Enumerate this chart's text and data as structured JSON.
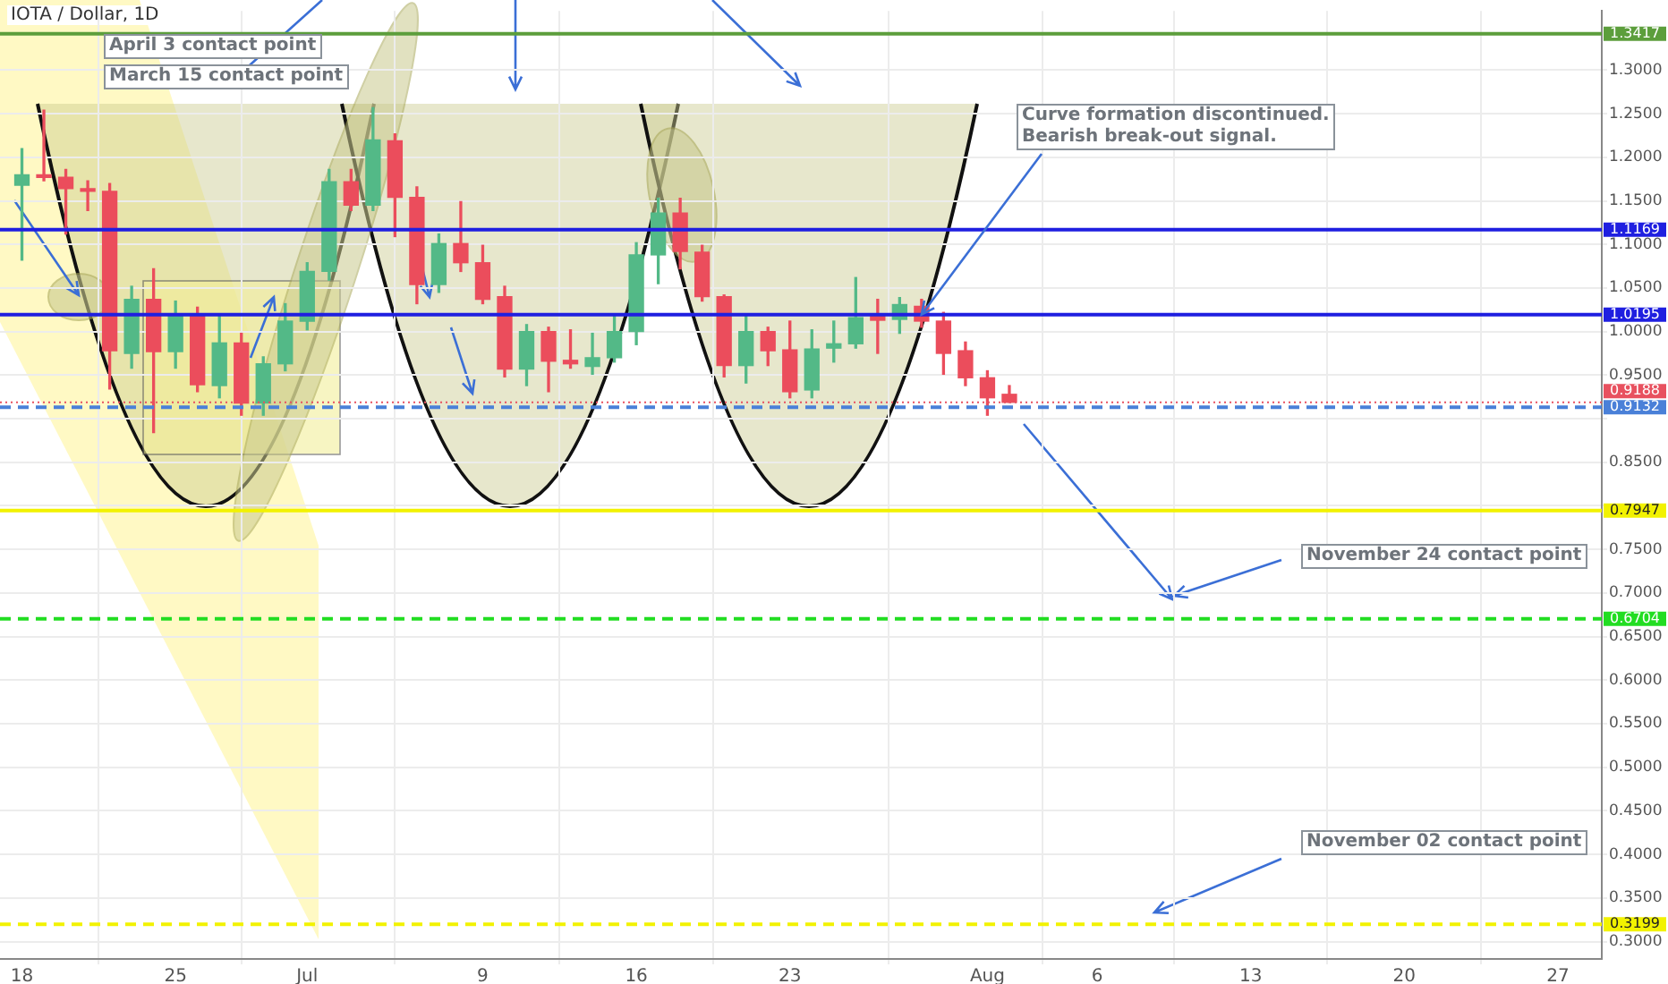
{
  "chart_data": {
    "type": "candlestick",
    "title": "IOTA / Dollar, 1D",
    "x": [
      "--06-18",
      "--06-19",
      "--06-20",
      "--06-21",
      "--06-22",
      "--06-23",
      "--06-24",
      "--06-25",
      "--06-26",
      "--06-27",
      "--06-28",
      "--06-29",
      "--06-30",
      "--07-01",
      "--07-02",
      "--07-03",
      "--07-04",
      "--07-05",
      "--07-06",
      "--07-07",
      "--07-08",
      "--07-09",
      "--07-10",
      "--07-11",
      "--07-12",
      "--07-13",
      "--07-14",
      "--07-15",
      "--07-16",
      "--07-17",
      "--07-18",
      "--07-19",
      "--07-20",
      "--07-21",
      "--07-22",
      "--07-23",
      "--07-24",
      "--07-25",
      "--07-26",
      "--07-27",
      "--07-28",
      "--07-29",
      "--07-30",
      "--07-31",
      "--08-01",
      "--08-02"
    ],
    "ohlc": [
      [
        1.168,
        1.21,
        1.082,
        1.18
      ],
      [
        1.18,
        1.254,
        1.173,
        1.177
      ],
      [
        1.177,
        1.186,
        1.112,
        1.164
      ],
      [
        1.164,
        1.173,
        1.139,
        1.161
      ],
      [
        1.161,
        1.17,
        0.934,
        0.978
      ],
      [
        0.975,
        1.052,
        0.958,
        1.037
      ],
      [
        1.037,
        1.072,
        0.884,
        0.977
      ],
      [
        0.977,
        1.035,
        0.958,
        1.018
      ],
      [
        1.02,
        1.028,
        0.931,
        0.939
      ],
      [
        0.938,
        1.018,
        0.924,
        0.987
      ],
      [
        0.987,
        0.998,
        0.904,
        0.918
      ],
      [
        0.918,
        0.971,
        0.904,
        0.963
      ],
      [
        0.963,
        1.032,
        0.955,
        1.012
      ],
      [
        1.012,
        1.079,
        1.002,
        1.069
      ],
      [
        1.069,
        1.186,
        1.059,
        1.172
      ],
      [
        1.172,
        1.186,
        1.139,
        1.145
      ],
      [
        1.145,
        1.257,
        1.139,
        1.22
      ],
      [
        1.219,
        1.227,
        1.109,
        1.154
      ],
      [
        1.154,
        1.166,
        1.032,
        1.054
      ],
      [
        1.054,
        1.112,
        1.045,
        1.101
      ],
      [
        1.101,
        1.149,
        1.069,
        1.079
      ],
      [
        1.079,
        1.099,
        1.032,
        1.037
      ],
      [
        1.04,
        1.052,
        0.948,
        0.957
      ],
      [
        0.957,
        1.008,
        0.938,
        1.0
      ],
      [
        1.0,
        1.005,
        0.931,
        0.966
      ],
      [
        0.967,
        1.002,
        0.958,
        0.963
      ],
      [
        0.96,
        0.998,
        0.951,
        0.97
      ],
      [
        0.97,
        1.018,
        0.965,
        1.0
      ],
      [
        1.0,
        1.102,
        0.985,
        1.088
      ],
      [
        1.088,
        1.153,
        1.055,
        1.136
      ],
      [
        1.136,
        1.153,
        1.072,
        1.092
      ],
      [
        1.091,
        1.099,
        1.035,
        1.04
      ],
      [
        1.04,
        1.042,
        0.948,
        0.961
      ],
      [
        0.961,
        1.018,
        0.941,
        1.0
      ],
      [
        1.0,
        1.005,
        0.961,
        0.978
      ],
      [
        0.979,
        1.012,
        0.924,
        0.931
      ],
      [
        0.933,
        1.002,
        0.924,
        0.98
      ],
      [
        0.981,
        1.012,
        0.965,
        0.986
      ],
      [
        0.986,
        1.062,
        0.981,
        1.016
      ],
      [
        1.018,
        1.037,
        0.975,
        1.013
      ],
      [
        1.014,
        1.039,
        0.998,
        1.031
      ],
      [
        1.029,
        1.037,
        1.005,
        1.012
      ],
      [
        1.012,
        1.022,
        0.951,
        0.975
      ],
      [
        0.978,
        0.988,
        0.938,
        0.947
      ],
      [
        0.947,
        0.955,
        0.904,
        0.924
      ],
      [
        0.928,
        0.938,
        0.9188,
        0.9188
      ]
    ],
    "colors": [
      "#53b987",
      "#eb4d5c",
      "#eb4d5c",
      "#eb4d5c",
      "#eb4d5c",
      "#53b987",
      "#eb4d5c",
      "#53b987",
      "#eb4d5c",
      "#53b987",
      "#eb4d5c",
      "#53b987",
      "#53b987",
      "#53b987",
      "#53b987",
      "#eb4d5c",
      "#53b987",
      "#eb4d5c",
      "#eb4d5c",
      "#53b987",
      "#eb4d5c",
      "#eb4d5c",
      "#eb4d5c",
      "#53b987",
      "#eb4d5c",
      "#eb4d5c",
      "#53b987",
      "#53b987",
      "#53b987",
      "#53b987",
      "#eb4d5c",
      "#eb4d5c",
      "#eb4d5c",
      "#53b987",
      "#eb4d5c",
      "#eb4d5c",
      "#53b987",
      "#53b987",
      "#53b987",
      "#eb4d5c",
      "#53b987",
      "#eb4d5c",
      "#eb4d5c",
      "#eb4d5c",
      "#eb4d5c",
      "#eb4d5c"
    ],
    "xlim": [
      "--06-17",
      "--08-29"
    ],
    "xticks": [
      {
        "value": "--06-18",
        "label": "18"
      },
      {
        "value": "--06-25",
        "label": "25"
      },
      {
        "value": "--07-01",
        "label": "Jul"
      },
      {
        "value": "--07-09",
        "label": "9"
      },
      {
        "value": "--07-16",
        "label": "16"
      },
      {
        "value": "--07-23",
        "label": "23"
      },
      {
        "value": "--08-01",
        "label": "Aug"
      },
      {
        "value": "--08-06",
        "label": "6"
      },
      {
        "value": "--08-13",
        "label": "13"
      },
      {
        "value": "--08-20",
        "label": "20"
      },
      {
        "value": "--08-27",
        "label": "27"
      }
    ],
    "ylim": [
      0.28,
      1.368
    ],
    "yticks": [
      {
        "value": 0.3,
        "label": "0.3000"
      },
      {
        "value": 0.35,
        "label": "0.3500"
      },
      {
        "value": 0.4,
        "label": "0.4000"
      },
      {
        "value": 0.45,
        "label": "0.4500"
      },
      {
        "value": 0.5,
        "label": "0.5000"
      },
      {
        "value": 0.55,
        "label": "0.5500"
      },
      {
        "value": 0.6,
        "label": "0.6000"
      },
      {
        "value": 0.65,
        "label": "0.6500"
      },
      {
        "value": 0.7,
        "label": "0.7000"
      },
      {
        "value": 0.75,
        "label": "0.7500"
      },
      {
        "value": 0.8,
        "label": null
      },
      {
        "value": 0.85,
        "label": "0.8500"
      },
      {
        "value": 0.9,
        "label": null
      },
      {
        "value": 0.95,
        "label": "0.9500"
      },
      {
        "value": 1.0,
        "label": "1.0000"
      },
      {
        "value": 1.05,
        "label": "1.0500"
      },
      {
        "value": 1.1,
        "label": "1.1000"
      },
      {
        "value": 1.15,
        "label": "1.1500"
      },
      {
        "value": 1.2,
        "label": "1.2000"
      },
      {
        "value": 1.25,
        "label": "1.2500"
      },
      {
        "value": 1.3,
        "label": "1.3000"
      }
    ],
    "grid": true,
    "ref_lines": [
      {
        "axis": "y",
        "value": 1.3417,
        "label": "1.3417",
        "color": "#5c9e3c",
        "line_style": "solid"
      },
      {
        "axis": "y",
        "value": 1.1169,
        "label": "1.1169",
        "color": "#1f1fe0",
        "line_style": "solid"
      },
      {
        "axis": "y",
        "value": 1.0195,
        "label": "1.0195",
        "color": "#1f1fe0",
        "line_style": "solid"
      },
      {
        "axis": "y",
        "value": 0.9188,
        "label": "0.9188",
        "color": "#e8515f",
        "line_style": "dotted"
      },
      {
        "axis": "y",
        "value": 0.9132,
        "label": "0.9132",
        "color": "#4a80d8",
        "line_style": "dashed"
      },
      {
        "axis": "y",
        "value": 0.7947,
        "label": "0.7947",
        "color": "#f2f200",
        "line_style": "solid"
      },
      {
        "axis": "y",
        "value": 0.6704,
        "label": "0.6704",
        "color": "#22dd22",
        "line_style": "dashed"
      },
      {
        "axis": "y",
        "value": 0.3199,
        "label": "0.3199",
        "color": "#f2f200",
        "line_style": "dashed"
      }
    ],
    "annotations": [
      "April 3 contact point",
      "March 15 contact point",
      {
        "text": "Curve formation discontinued.\nBearish break-out signal.",
        "x": "--07-29",
        "y": 1.0195
      },
      "November 24 contact point",
      "November 02 contact point"
    ]
  }
}
